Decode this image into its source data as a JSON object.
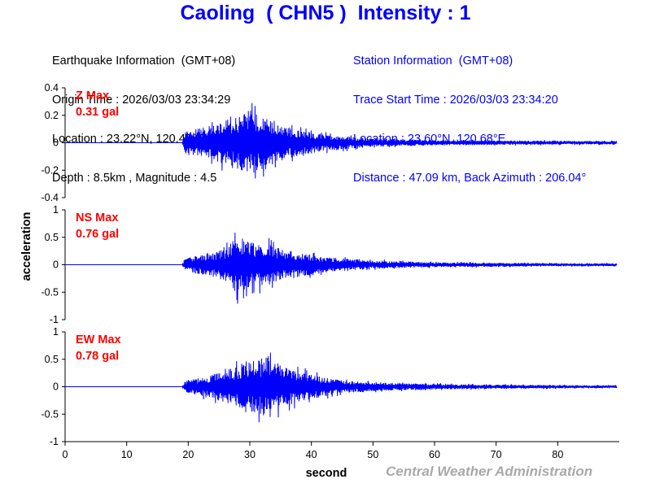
{
  "header": {
    "station": "Caoling",
    "code": "( CHN5 )",
    "intensity_label": "Intensity",
    "intensity": "1"
  },
  "earthquake_info": {
    "heading": "Earthquake Information  (GMT+08)",
    "origin_time": "Origin Time : 2026/03/03 23:34:29",
    "location": "Location : 23.22°N, 120.47°E",
    "depth_magnitude": "Depth : 8.5km , Magnitude : 4.5"
  },
  "station_info": {
    "heading": "Station Information  (GMT+08)",
    "trace_start": "Trace Start Time : 2026/03/03 23:34:20",
    "location": "Location : 23.60°N, 120.68°E",
    "distance": "Distance : 47.09 km, Back Azimuth : 206.04°"
  },
  "credit": "Central Weather Administration",
  "colors": {
    "title": "#0000ff",
    "trace": "#0000ff",
    "max_label": "#ff0000",
    "credit": "#a9a9a9"
  },
  "chart_data": {
    "type": "line",
    "xlabel": "second",
    "ylabel": "acceleration",
    "xlim": [
      0,
      90
    ],
    "x_ticks": [
      "0",
      "10",
      "20",
      "30",
      "40",
      "50",
      "60",
      "70",
      "80"
    ],
    "grid": false,
    "panels": [
      {
        "component": "Z",
        "max_label": "Z Max",
        "max_value": "0.31 gal",
        "ylim": [
          -0.4,
          0.4
        ],
        "y_ticks": [
          0.4,
          0.2,
          0,
          -0.2,
          -0.4
        ],
        "y_tick_labels": [
          "0.4",
          "0.2",
          "0",
          "-0.2",
          "-0.4"
        ],
        "envelope": [
          {
            "t": 0,
            "amp": 0.0
          },
          {
            "t": 19,
            "amp": 0.0
          },
          {
            "t": 19.5,
            "amp": 0.12
          },
          {
            "t": 22,
            "amp": 0.14
          },
          {
            "t": 26,
            "amp": 0.22
          },
          {
            "t": 29,
            "amp": 0.28
          },
          {
            "t": 31,
            "amp": 0.3
          },
          {
            "t": 34,
            "amp": 0.2
          },
          {
            "t": 37,
            "amp": 0.14
          },
          {
            "t": 42,
            "amp": 0.08
          },
          {
            "t": 50,
            "amp": 0.04
          },
          {
            "t": 60,
            "amp": 0.025
          },
          {
            "t": 75,
            "amp": 0.02
          },
          {
            "t": 90,
            "amp": 0.015
          }
        ]
      },
      {
        "component": "NS",
        "max_label": "NS Max",
        "max_value": "0.76 gal",
        "ylim": [
          -1,
          1
        ],
        "y_ticks": [
          1,
          0.5,
          0,
          -0.5,
          -1
        ],
        "y_tick_labels": [
          "1",
          "0.5",
          "0",
          "-0.5",
          "-1"
        ],
        "envelope": [
          {
            "t": 0,
            "amp": 0.0
          },
          {
            "t": 19,
            "amp": 0.0
          },
          {
            "t": 19.5,
            "amp": 0.18
          },
          {
            "t": 23,
            "amp": 0.25
          },
          {
            "t": 26,
            "amp": 0.4
          },
          {
            "t": 28,
            "amp": 0.72
          },
          {
            "t": 30,
            "amp": 0.55
          },
          {
            "t": 33,
            "amp": 0.5
          },
          {
            "t": 36,
            "amp": 0.35
          },
          {
            "t": 42,
            "amp": 0.2
          },
          {
            "t": 50,
            "amp": 0.1
          },
          {
            "t": 60,
            "amp": 0.06
          },
          {
            "t": 75,
            "amp": 0.04
          },
          {
            "t": 90,
            "amp": 0.03
          }
        ]
      },
      {
        "component": "EW",
        "max_label": "EW Max",
        "max_value": "0.78 gal",
        "ylim": [
          -1,
          1
        ],
        "y_ticks": [
          1,
          0.5,
          0,
          -0.5,
          -1
        ],
        "y_tick_labels": [
          "1",
          "0.5",
          "0",
          "-0.5",
          "-1"
        ],
        "envelope": [
          {
            "t": 0,
            "amp": 0.0
          },
          {
            "t": 19,
            "amp": 0.0
          },
          {
            "t": 19.5,
            "amp": 0.15
          },
          {
            "t": 23,
            "amp": 0.25
          },
          {
            "t": 27,
            "amp": 0.45
          },
          {
            "t": 30,
            "amp": 0.6
          },
          {
            "t": 33,
            "amp": 0.75
          },
          {
            "t": 36,
            "amp": 0.45
          },
          {
            "t": 40,
            "amp": 0.3
          },
          {
            "t": 45,
            "amp": 0.15
          },
          {
            "t": 55,
            "amp": 0.08
          },
          {
            "t": 70,
            "amp": 0.05
          },
          {
            "t": 90,
            "amp": 0.03
          }
        ]
      }
    ]
  }
}
